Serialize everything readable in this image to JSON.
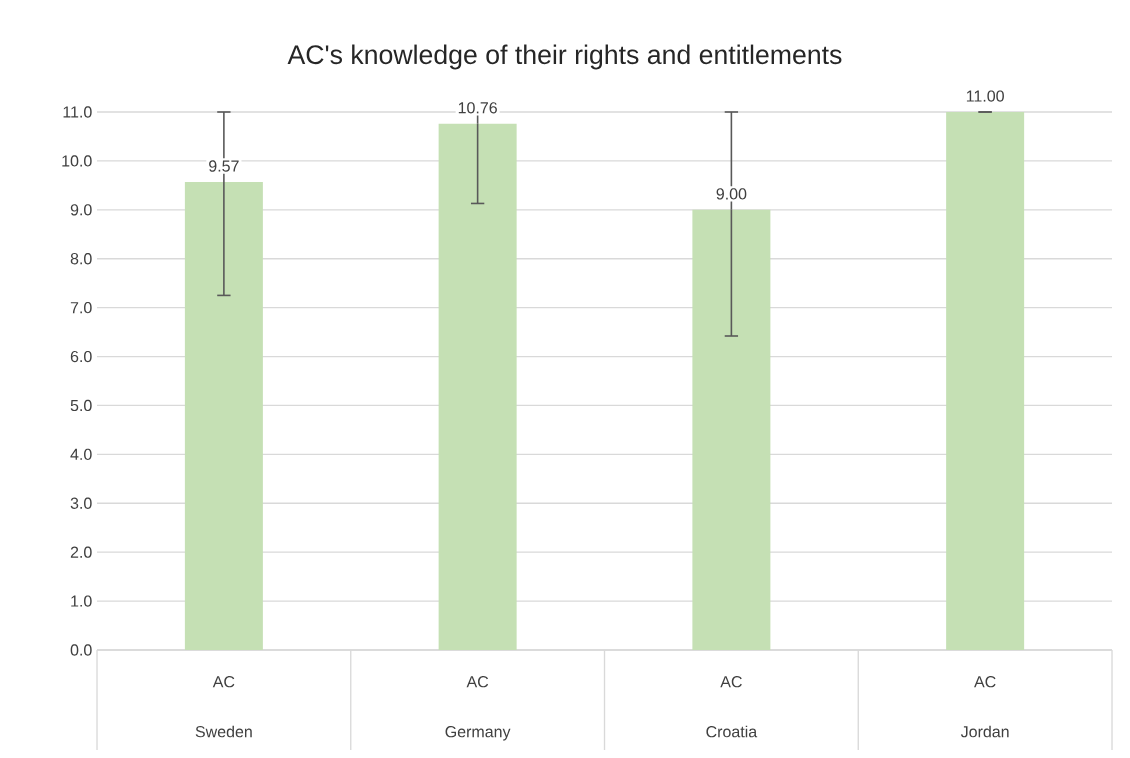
{
  "chart_data": {
    "type": "bar",
    "title": "AC's knowledge of their rights and entitlements",
    "categories": [
      "AC Sweden",
      "AC Germany",
      "AC Croatia",
      "AC Jordan"
    ],
    "values": [
      9.57,
      10.76,
      9.0,
      11.0
    ],
    "value_labels": [
      "9.57",
      "10.76",
      "9.00",
      "11.00"
    ],
    "errors": [
      [
        7.25,
        11
      ],
      [
        9.13,
        11
      ],
      [
        6.42,
        11
      ],
      [
        11,
        11
      ]
    ],
    "color": "#c5e0b4",
    "ylim": [
      0,
      11
    ],
    "yticks": [
      {
        "value": 0,
        "label": "0.0"
      },
      {
        "value": 1,
        "label": "1.0"
      },
      {
        "value": 2,
        "label": "2.0"
      },
      {
        "value": 3,
        "label": "3.0"
      },
      {
        "value": 4,
        "label": "4.0"
      },
      {
        "value": 5,
        "label": "5.0"
      },
      {
        "value": 6,
        "label": "6.0"
      },
      {
        "value": 7,
        "label": "7.0"
      },
      {
        "value": 8,
        "label": "8.0"
      },
      {
        "value": 9,
        "label": "9.0"
      },
      {
        "value": 10,
        "label": "10.0"
      },
      {
        "value": 11,
        "label": "11.0"
      }
    ],
    "grid": "y"
  }
}
